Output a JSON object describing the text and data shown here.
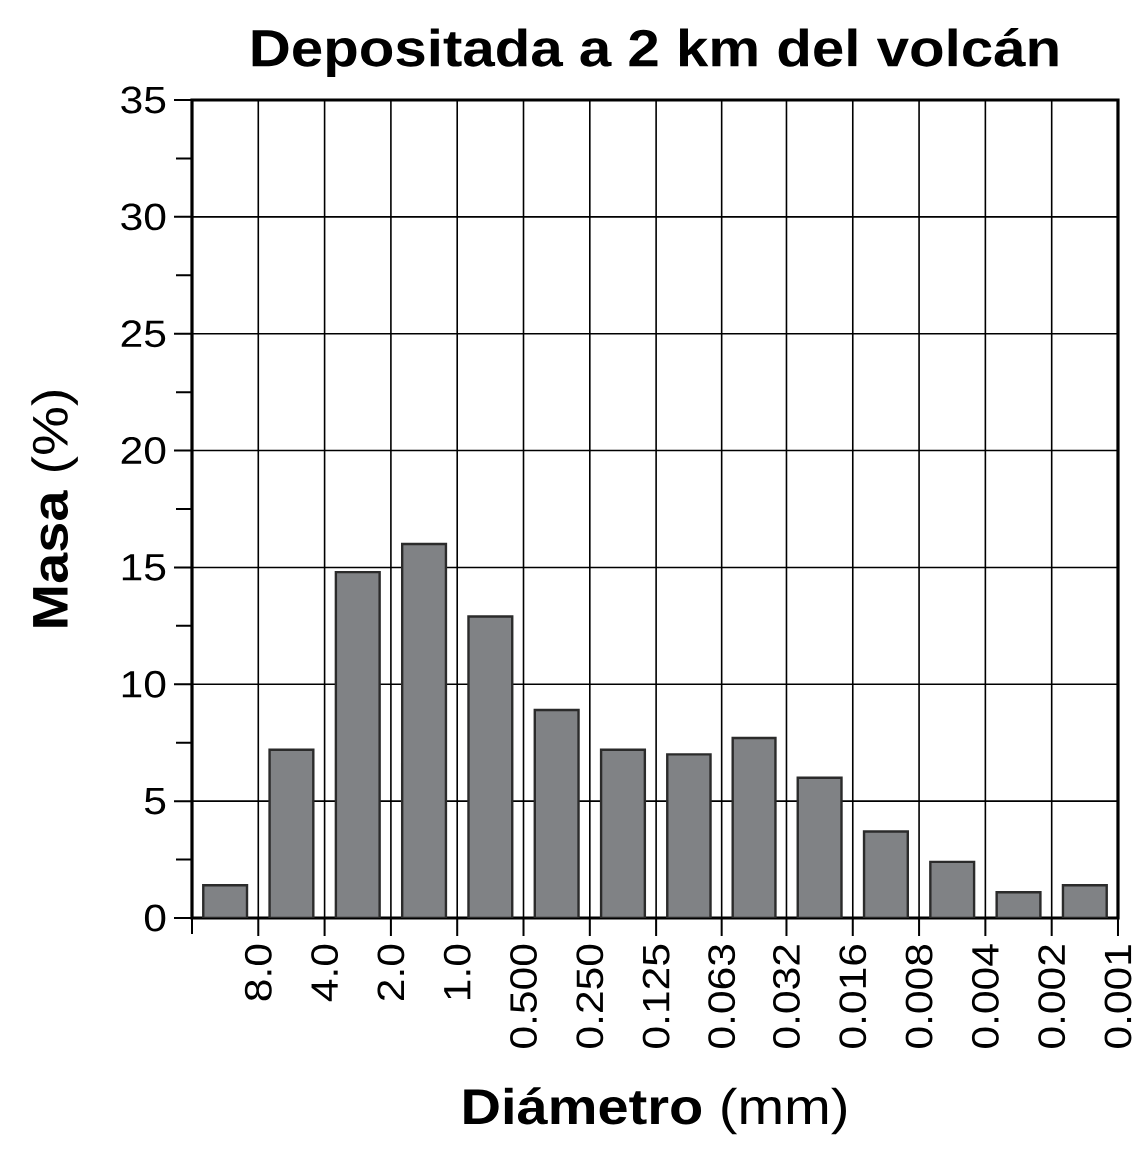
{
  "chart_data": {
    "type": "histogram",
    "title": "Depositada a 2 km del volcán",
    "xlabel": "**Diámetro** (mm)",
    "ylabel": "**Masa** (%)",
    "bins": [
      16,
      8,
      4,
      2,
      1,
      0.5,
      0.25,
      0.125,
      0.063,
      0.032,
      0.016,
      0.008,
      0.004,
      0.002,
      0.001
    ],
    "values": [
      1.4,
      7.2,
      14.8,
      16.0,
      12.9,
      8.9,
      7.2,
      7.0,
      7.7,
      6.0,
      3.7,
      2.4,
      1.1,
      1.4
    ],
    "color": "#808285",
    "log": "x",
    "xlim": [
      16,
      0.001
    ],
    "ylim": [
      0,
      35
    ],
    "xticks": [
      {
        "value": 16,
        "label": null
      },
      {
        "value": 8,
        "label": "8.0"
      },
      {
        "value": 4,
        "label": "4.0"
      },
      {
        "value": 2,
        "label": "2.0"
      },
      {
        "value": 1,
        "label": "1.0"
      },
      {
        "value": 0.5,
        "label": "0.500"
      },
      {
        "value": 0.25,
        "label": "0.250"
      },
      0.125,
      0.063,
      0.032,
      0.016,
      0.008,
      0.004,
      0.002,
      0.001
    ],
    "yticks": [
      0,
      {
        "value": 2.5,
        "label": null
      },
      5,
      {
        "value": 7.5,
        "label": null
      },
      10,
      {
        "value": 12.5,
        "label": null
      },
      15,
      {
        "value": 17.5,
        "label": null
      },
      20,
      {
        "value": 22.5,
        "label": null
      },
      25,
      {
        "value": 27.5,
        "label": null
      },
      30,
      {
        "value": 32.5,
        "label": null
      },
      35
    ],
    "grid": true
  }
}
